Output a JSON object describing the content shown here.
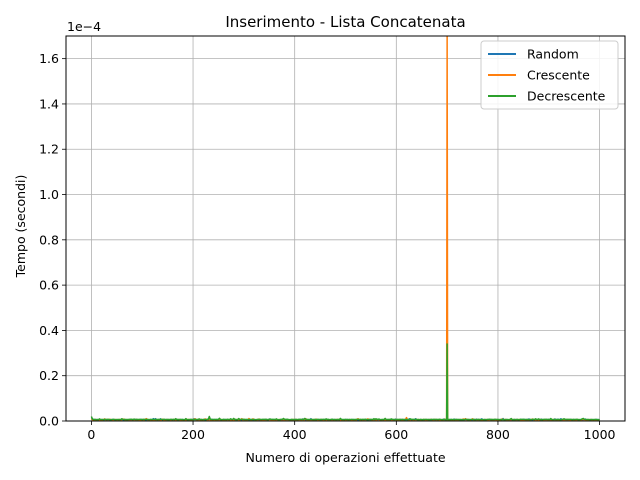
{
  "chart_data": {
    "type": "line",
    "title": "Inserimento - Lista Concatenata",
    "xlabel": "Numero di operazioni effettuate",
    "ylabel": "Tempo (secondi)",
    "y_offset_label": "1e−4",
    "xlim": [
      -50,
      1050
    ],
    "ylim": [
      0,
      1.7
    ],
    "y_scale_note": "values in units of 1e-4 seconds",
    "grid": true,
    "legend_placement": "top-right",
    "x_ticks": [
      0,
      200,
      400,
      600,
      800,
      1000
    ],
    "x_tick_labels": [
      "0",
      "200",
      "400",
      "600",
      "800",
      "1000"
    ],
    "y_ticks": [
      0.0,
      0.2,
      0.4,
      0.6,
      0.8,
      1.0,
      1.2,
      1.4,
      1.6
    ],
    "y_tick_labels": [
      "0.0",
      "0.2",
      "0.4",
      "0.6",
      "0.8",
      "1.0",
      "1.2",
      "1.4",
      "1.6"
    ],
    "series": [
      {
        "name": "Random",
        "color": "#1f77b4",
        "baseline": 0.005,
        "points": [
          [
            0,
            0.012
          ],
          [
            60,
            0.008
          ],
          [
            232,
            0.012
          ],
          [
            700,
            0.005
          ],
          [
            1000,
            0.005
          ]
        ]
      },
      {
        "name": "Crescente",
        "color": "#ff7f0e",
        "baseline": 0.005,
        "points": [
          [
            0,
            0.01
          ],
          [
            620,
            0.015
          ],
          [
            699,
            0.005
          ],
          [
            700,
            1.72
          ],
          [
            701,
            0.005
          ],
          [
            1000,
            0.005
          ]
        ]
      },
      {
        "name": "Decrescente",
        "color": "#2ca02c",
        "baseline": 0.006,
        "points": [
          [
            0,
            0.02
          ],
          [
            60,
            0.01
          ],
          [
            232,
            0.02
          ],
          [
            560,
            0.01
          ],
          [
            699,
            0.006
          ],
          [
            700,
            0.34
          ],
          [
            701,
            0.006
          ],
          [
            930,
            0.01
          ],
          [
            1000,
            0.006
          ]
        ]
      }
    ]
  }
}
